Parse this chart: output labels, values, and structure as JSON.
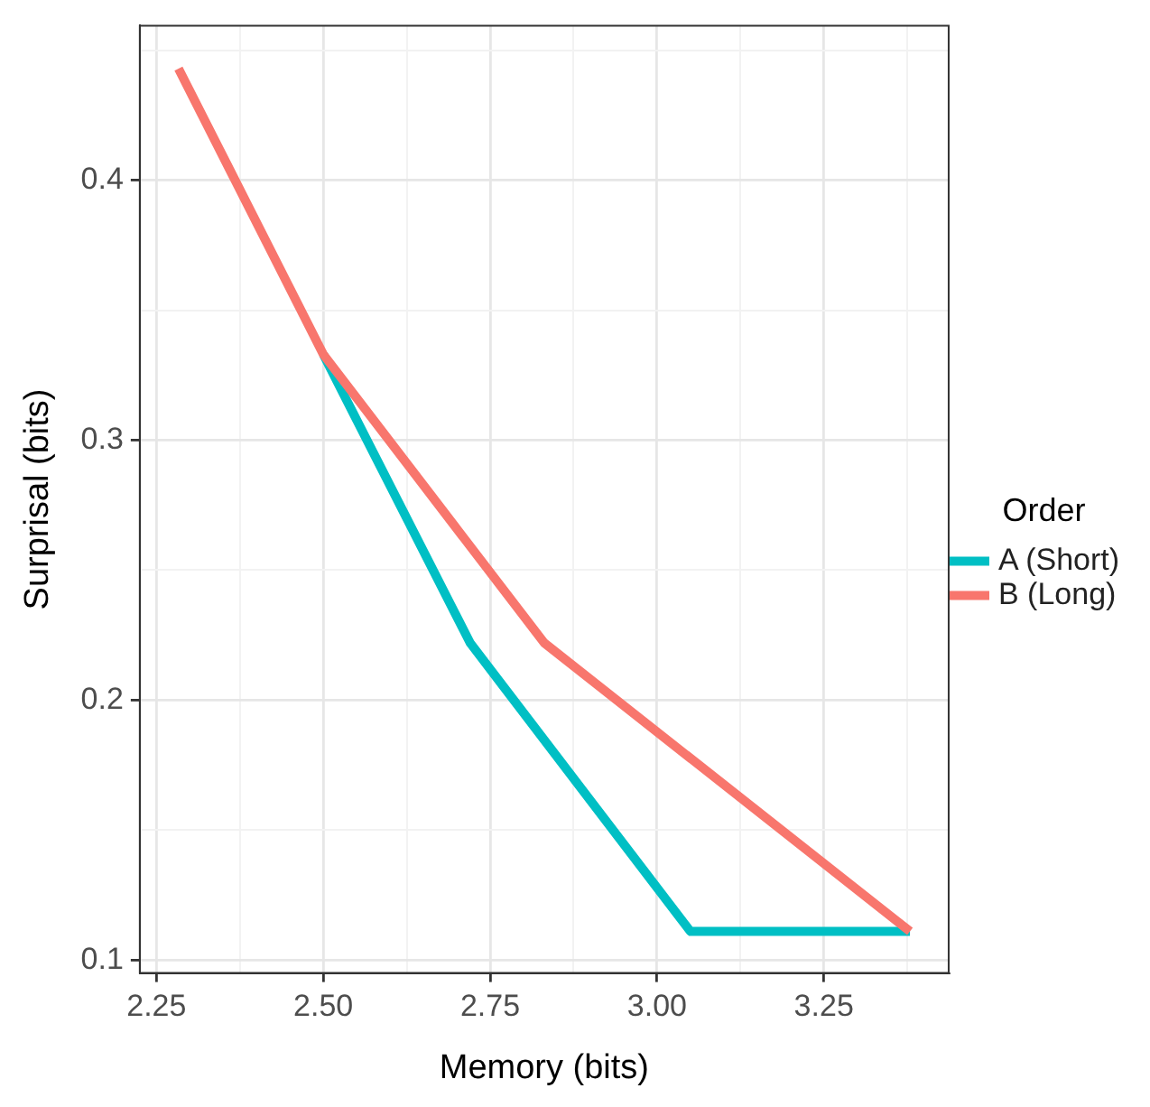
{
  "chart_data": {
    "type": "line",
    "xlabel": "Memory (bits)",
    "ylabel": "Surprisal (bits)",
    "legend_title": "Order",
    "legend": "right",
    "grid": true,
    "marker": "none",
    "line_style": "solid",
    "xlim": [
      2.225,
      3.437
    ],
    "ylim": [
      0.095,
      0.4595
    ],
    "xticks": [
      2.25,
      {
        "value": 2.375,
        "label": null
      },
      "2.50",
      {
        "value": 2.625,
        "label": null
      },
      2.75,
      {
        "value": 2.875,
        "label": null
      },
      "3.00",
      {
        "value": 3.125,
        "label": null
      },
      3.25,
      {
        "value": 3.375,
        "label": null
      }
    ],
    "yticks": [
      0.1,
      {
        "value": 0.15,
        "label": null
      },
      0.2,
      {
        "value": 0.25,
        "label": null
      },
      0.3,
      {
        "value": 0.35,
        "label": null
      },
      0.4,
      {
        "value": 0.45,
        "label": null
      }
    ],
    "series": [
      {
        "name": "A (Short)",
        "color": "#00bfc4",
        "x": [
          2.5,
          2.72,
          3.05,
          3.379
        ],
        "values": [
          0.333,
          0.222,
          0.111,
          0.111
        ]
      },
      {
        "name": "B (Long)",
        "color": "#f8766d",
        "x": [
          2.283,
          2.5,
          2.831,
          3.379
        ],
        "values": [
          0.443,
          0.333,
          0.222,
          0.111
        ]
      }
    ]
  }
}
